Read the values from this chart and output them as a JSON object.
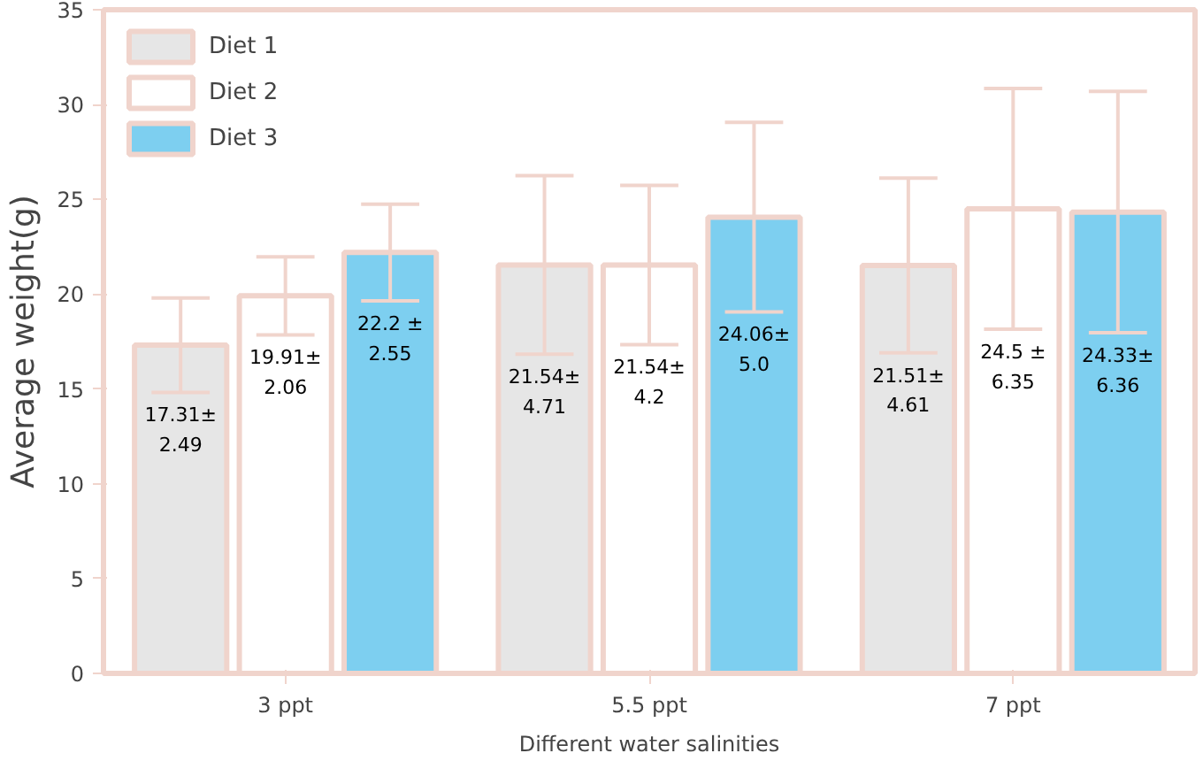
{
  "chart_data": {
    "type": "bar",
    "xlabel": "Different water salinities",
    "ylabel": "Average weight(g)",
    "categories": [
      "3 ppt",
      "5.5 ppt",
      "7 ppt"
    ],
    "series": [
      {
        "name": "Diet 1",
        "color": "#e6e6e6",
        "values": [
          17.31,
          21.54,
          21.51
        ],
        "errors": [
          2.49,
          4.71,
          4.61
        ],
        "value_labels": [
          "17.31±\n2.49",
          "21.54±\n4.71",
          "21.51±\n4.61"
        ]
      },
      {
        "name": "Diet 2",
        "color": "#ffffff",
        "values": [
          19.91,
          21.54,
          24.5
        ],
        "errors": [
          2.06,
          4.2,
          6.35
        ],
        "value_labels": [
          "19.91±\n2.06",
          "21.54±\n4.2",
          "24.5 ±\n6.35"
        ]
      },
      {
        "name": "Diet 3",
        "color": "#7dcff0",
        "values": [
          22.2,
          24.06,
          24.33
        ],
        "errors": [
          2.55,
          5.0,
          6.36
        ],
        "value_labels": [
          "22.2 ±\n2.55",
          "24.06±\n5.0",
          "24.33±\n6.36"
        ]
      }
    ],
    "ylim": [
      0,
      35
    ],
    "yticks": [
      0,
      5,
      10,
      15,
      20,
      25,
      30,
      35
    ],
    "grid": false,
    "legend": "top left"
  }
}
